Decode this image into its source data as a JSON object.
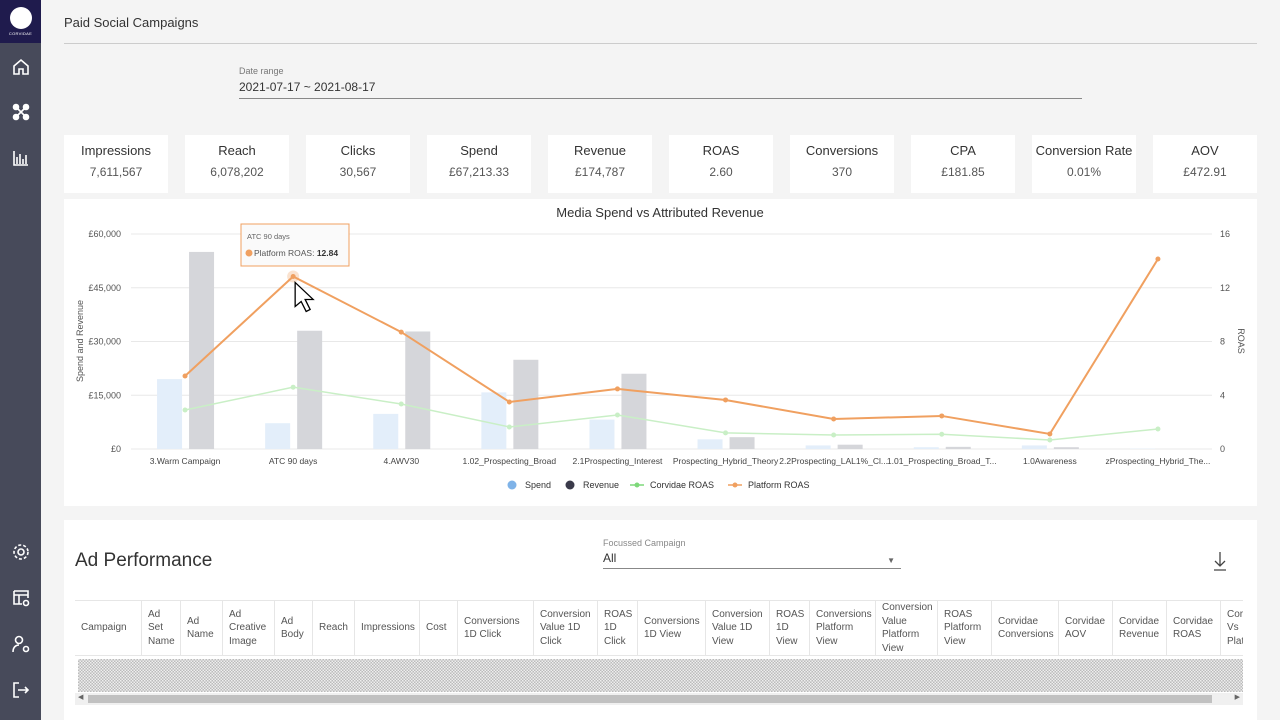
{
  "brand": {
    "name": "CORVIDAE"
  },
  "page": {
    "title": "Paid Social Campaigns"
  },
  "date_range": {
    "label": "Date range",
    "value": "2021-07-17 ~ 2021-08-17"
  },
  "kpis": [
    {
      "label": "Impressions",
      "value": "7,611,567"
    },
    {
      "label": "Reach",
      "value": "6,078,202"
    },
    {
      "label": "Clicks",
      "value": "30,567"
    },
    {
      "label": "Spend",
      "value": "£67,213.33"
    },
    {
      "label": "Revenue",
      "value": "£174,787"
    },
    {
      "label": "ROAS",
      "value": "2.60"
    },
    {
      "label": "Conversions",
      "value": "370"
    },
    {
      "label": "CPA",
      "value": "£181.85"
    },
    {
      "label": "Conversion Rate",
      "value": "0.01%"
    },
    {
      "label": "AOV",
      "value": "£472.91"
    }
  ],
  "chart_data": {
    "type": "bar",
    "title": "Media Spend vs Attributed Revenue",
    "ylabel": "Spend and Revenue",
    "y2label": "ROAS",
    "ylim": [
      0,
      60000
    ],
    "y2lim": [
      0,
      16
    ],
    "yticks": [
      "£0",
      "£15,000",
      "£30,000",
      "£45,000",
      "£60,000"
    ],
    "y2ticks": [
      "0",
      "4",
      "8",
      "12",
      "16"
    ],
    "categories": [
      "3.Warm Campaign",
      "ATC 90 days",
      "4.AWV30",
      "1.02_Prospecting_Broad",
      "2.1Prospecting_Interest",
      "Prospecting_Hybrid_Theory",
      "2.2Prospecting_LAL1%_Cl...",
      "1.01_Prospecting_Broad_T...",
      "1.0Awareness",
      "zProspecting_Hybrid_The..."
    ],
    "series": [
      {
        "name": "Spend",
        "type": "bar",
        "axis": "left",
        "color": "#e3eefa",
        "legend_color": "#7fb3e8",
        "values": [
          19500,
          7200,
          9800,
          15800,
          8200,
          2700,
          1000,
          500,
          1000,
          100
        ]
      },
      {
        "name": "Revenue",
        "type": "bar",
        "axis": "left",
        "color": "#d5d6da",
        "legend_color": "#3a3a4a",
        "values": [
          55000,
          33000,
          32800,
          24900,
          21000,
          3300,
          1200,
          600,
          500,
          0
        ]
      },
      {
        "name": "Corvidae ROAS",
        "type": "line",
        "axis": "right",
        "color": "#c9efc6",
        "legend_color": "#7ed87a",
        "values": [
          2.9,
          4.6,
          3.35,
          1.64,
          2.53,
          1.2,
          1.04,
          1.1,
          0.67,
          1.49
        ]
      },
      {
        "name": "Platform ROAS",
        "type": "line",
        "axis": "right",
        "color": "#f0a060",
        "legend_color": "#f0a060",
        "values": [
          5.43,
          12.84,
          8.7,
          3.5,
          4.47,
          3.65,
          2.23,
          2.46,
          1.12,
          14.14
        ]
      }
    ],
    "legend": "bottom",
    "tooltip": {
      "title": "ATC 90 days",
      "label": "Platform ROAS: ",
      "value": "12.84"
    }
  },
  "ad_performance": {
    "title": "Ad Performance",
    "focus": {
      "label": "Focussed Campaign",
      "value": "All"
    },
    "columns": [
      "Campaign",
      "Ad Set Name",
      "Ad Name",
      "Ad Creative Image",
      "Ad Body",
      "Reach",
      "Impressions",
      "Cost",
      "Conversions 1D Click",
      "Conversion Value 1D Click",
      "ROAS 1D Click",
      "Conversions 1D View",
      "Conversion Value 1D View",
      "ROAS 1D View",
      "Conversions Platform View",
      "Conversion Value Platform View",
      "ROAS Platform View",
      "Corvidae Conversions",
      "Corvidae AOV",
      "Corvidae Revenue",
      "Corvidae ROAS",
      "Corvidae Vs Platform"
    ]
  }
}
